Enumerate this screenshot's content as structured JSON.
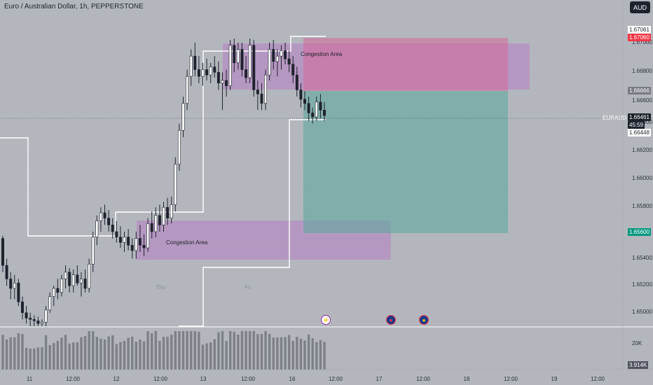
{
  "header": {
    "title": "Euro / Australian Dollar, 1h, PEPPERSTONE",
    "currency_button": "AUD"
  },
  "colors": {
    "background": "#b3b7bd",
    "candle_up": "#ffffff",
    "candle_down": "#1e222d",
    "zone": "#b77fc4",
    "target": "#5fa99f",
    "stop": "#d46a9a",
    "level_line": "#ffffff"
  },
  "price_axis": {
    "ticks": [
      "1.67000",
      "1.66800",
      "1.66600",
      "1.66400",
      "1.66200",
      "1.66000",
      "1.65800",
      "1.65400",
      "1.65200",
      "1.65000"
    ],
    "tags": {
      "top_white": "1.67061",
      "stop": "1.67060",
      "entry": "1.66666",
      "current": "1.66461",
      "current_sub": "45:59",
      "lower_white": "1.66448",
      "target": "1.65600"
    },
    "symbol": "EURAUD"
  },
  "annotations": {
    "upper_zone": "Congestion Area",
    "lower_zone": "Congestion Area",
    "day_thu": "Thu",
    "day_fri": "Fri"
  },
  "events": [
    {
      "icon": "lightning-icon",
      "glyph": "⚡"
    },
    {
      "icon": "australia-flag-icon",
      "glyph": "●"
    },
    {
      "icon": "eu-flag-icon",
      "glyph": "●"
    }
  ],
  "volume": {
    "axis_label": "20K",
    "current": "3.914K"
  },
  "time_axis": [
    "11",
    "12:00",
    "12",
    "12:00",
    "13",
    "12:00",
    "16",
    "12:00",
    "17",
    "12:00",
    "18",
    "12:00",
    "19",
    "12:00"
  ],
  "chart_data": {
    "type": "candlestick",
    "instrument": "EURAUD",
    "timeframe": "1h",
    "ylim": [
      1.649,
      1.6716
    ],
    "candles": [
      [
        1.6555,
        1.6557,
        1.653,
        1.6535
      ],
      [
        1.6535,
        1.654,
        1.652,
        1.6525
      ],
      [
        1.6525,
        1.653,
        1.651,
        1.6518
      ],
      [
        1.6518,
        1.6528,
        1.651,
        1.6522
      ],
      [
        1.6522,
        1.6525,
        1.6505,
        1.6508
      ],
      [
        1.6508,
        1.6512,
        1.6495,
        1.65
      ],
      [
        1.65,
        1.6505,
        1.6492,
        1.6496
      ],
      [
        1.6496,
        1.65,
        1.649,
        1.6495
      ],
      [
        1.6495,
        1.6498,
        1.649,
        1.6494
      ],
      [
        1.6494,
        1.6497,
        1.649,
        1.6492
      ],
      [
        1.6492,
        1.6495,
        1.649,
        1.6493
      ],
      [
        1.6493,
        1.6505,
        1.649,
        1.6502
      ],
      [
        1.6502,
        1.6515,
        1.65,
        1.6512
      ],
      [
        1.6512,
        1.652,
        1.6505,
        1.6518
      ],
      [
        1.6518,
        1.6525,
        1.651,
        1.6515
      ],
      [
        1.6515,
        1.6528,
        1.6512,
        1.6525
      ],
      [
        1.6525,
        1.6535,
        1.6518,
        1.653
      ],
      [
        1.653,
        1.6533,
        1.6515,
        1.652
      ],
      [
        1.652,
        1.6532,
        1.6515,
        1.6528
      ],
      [
        1.6528,
        1.6535,
        1.652,
        1.6522
      ],
      [
        1.6522,
        1.653,
        1.6512,
        1.6525
      ],
      [
        1.6525,
        1.6532,
        1.6515,
        1.6518
      ],
      [
        1.6518,
        1.654,
        1.6515,
        1.6536
      ],
      [
        1.6536,
        1.656,
        1.653,
        1.6556
      ],
      [
        1.6556,
        1.6572,
        1.655,
        1.6568
      ],
      [
        1.6568,
        1.6578,
        1.656,
        1.6574
      ],
      [
        1.6574,
        1.658,
        1.6565,
        1.657
      ],
      [
        1.657,
        1.6576,
        1.656,
        1.6565
      ],
      [
        1.6565,
        1.657,
        1.6555,
        1.656
      ],
      [
        1.656,
        1.6568,
        1.6552,
        1.6556
      ],
      [
        1.6556,
        1.6564,
        1.6548,
        1.6552
      ],
      [
        1.6552,
        1.656,
        1.6545,
        1.6556
      ],
      [
        1.6556,
        1.6562,
        1.6546,
        1.655
      ],
      [
        1.655,
        1.6555,
        1.654,
        1.6546
      ],
      [
        1.6546,
        1.656,
        1.654,
        1.6555
      ],
      [
        1.6555,
        1.6565,
        1.6545,
        1.655
      ],
      [
        1.655,
        1.6558,
        1.6542,
        1.6548
      ],
      [
        1.6548,
        1.657,
        1.6545,
        1.6566
      ],
      [
        1.6566,
        1.6575,
        1.6555,
        1.656
      ],
      [
        1.656,
        1.6578,
        1.6556,
        1.6572
      ],
      [
        1.6572,
        1.658,
        1.656,
        1.6565
      ],
      [
        1.6565,
        1.6582,
        1.656,
        1.6578
      ],
      [
        1.6578,
        1.6585,
        1.6565,
        1.657
      ],
      [
        1.657,
        1.6586,
        1.6566,
        1.658
      ],
      [
        1.658,
        1.6615,
        1.6575,
        1.661
      ],
      [
        1.661,
        1.664,
        1.6605,
        1.6635
      ],
      [
        1.6635,
        1.666,
        1.663,
        1.6655
      ],
      [
        1.6655,
        1.668,
        1.665,
        1.6675
      ],
      [
        1.6675,
        1.6695,
        1.6668,
        1.669
      ],
      [
        1.669,
        1.67,
        1.6675,
        1.668
      ],
      [
        1.668,
        1.669,
        1.667,
        1.6675
      ],
      [
        1.6675,
        1.6685,
        1.6668,
        1.668
      ],
      [
        1.668,
        1.6688,
        1.6672,
        1.6676
      ],
      [
        1.6676,
        1.6685,
        1.667,
        1.6682
      ],
      [
        1.6682,
        1.669,
        1.6674,
        1.6678
      ],
      [
        1.6678,
        1.6686,
        1.6665,
        1.667
      ],
      [
        1.667,
        1.6678,
        1.665,
        1.6672
      ],
      [
        1.6672,
        1.668,
        1.666,
        1.6668
      ],
      [
        1.6668,
        1.6702,
        1.6665,
        1.6698
      ],
      [
        1.6698,
        1.6703,
        1.6678,
        1.6685
      ],
      [
        1.6685,
        1.67,
        1.668,
        1.6695
      ],
      [
        1.6695,
        1.67,
        1.6675,
        1.668
      ],
      [
        1.668,
        1.669,
        1.667,
        1.6674
      ],
      [
        1.6674,
        1.6703,
        1.667,
        1.6698
      ],
      [
        1.6698,
        1.6702,
        1.666,
        1.6665
      ],
      [
        1.6665,
        1.6672,
        1.665,
        1.6662
      ],
      [
        1.6662,
        1.667,
        1.665,
        1.6655
      ],
      [
        1.6655,
        1.668,
        1.665,
        1.6676
      ],
      [
        1.6676,
        1.67,
        1.6672,
        1.6695
      ],
      [
        1.6695,
        1.6702,
        1.668,
        1.6686
      ],
      [
        1.6686,
        1.6695,
        1.6675,
        1.669
      ],
      [
        1.669,
        1.6698,
        1.668,
        1.6694
      ],
      [
        1.6694,
        1.67,
        1.6684,
        1.6688
      ],
      [
        1.6688,
        1.6694,
        1.6678,
        1.6684
      ],
      [
        1.6684,
        1.669,
        1.667,
        1.6676
      ],
      [
        1.6676,
        1.6682,
        1.666,
        1.6665
      ],
      [
        1.6665,
        1.667,
        1.6652,
        1.6658
      ],
      [
        1.6658,
        1.6664,
        1.665,
        1.6655
      ],
      [
        1.6655,
        1.666,
        1.6642,
        1.6648
      ],
      [
        1.6648,
        1.6652,
        1.664,
        1.6645
      ],
      [
        1.6645,
        1.666,
        1.6642,
        1.6656
      ],
      [
        1.6656,
        1.6662,
        1.6644,
        1.665
      ],
      [
        1.665,
        1.6656,
        1.6642,
        1.6646
      ]
    ]
  }
}
